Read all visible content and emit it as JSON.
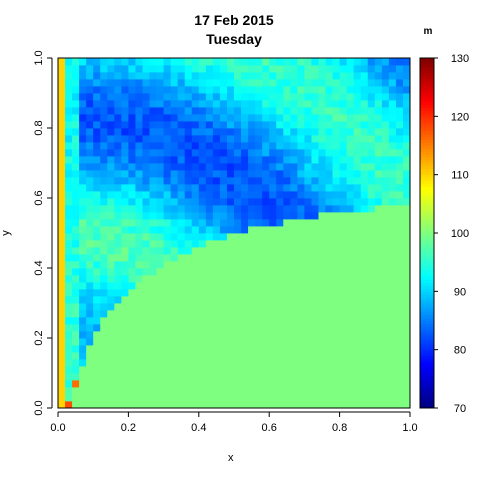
{
  "title": "17 Feb 2015",
  "subtitle": "Tuesday",
  "chart_data": {
    "type": "heatmap",
    "title": "17 Feb 2015",
    "subtitle": "Tuesday",
    "xlabel": "x",
    "ylabel": "y",
    "xlim": [
      0,
      1
    ],
    "ylim": [
      0,
      1
    ],
    "x_ticks": [
      "0.0",
      "0.2",
      "0.4",
      "0.6",
      "0.8",
      "1.0"
    ],
    "y_ticks": [
      "0.0",
      "0.2",
      "0.4",
      "0.6",
      "0.8",
      "1.0"
    ],
    "grid": {
      "nx": 50,
      "ny": 50,
      "left_column_value": 110,
      "boundary_value": 100,
      "boundary_curve_x": [
        0.03,
        0.06,
        0.1,
        0.15,
        0.2,
        0.3,
        0.4,
        0.5,
        0.6,
        0.7,
        0.8,
        0.9,
        1.0
      ],
      "boundary_curve_y": [
        0.0,
        0.1,
        0.21,
        0.28,
        0.33,
        0.41,
        0.46,
        0.5,
        0.52,
        0.54,
        0.56,
        0.57,
        0.57
      ],
      "hot_cells": [
        {
          "x": 0.02,
          "y": 0.0,
          "value": 118
        },
        {
          "x": 0.04,
          "y": 0.06,
          "value": 116
        }
      ]
    },
    "colorbar": {
      "label": "m",
      "range": [
        70,
        130
      ],
      "ticks": [
        "70",
        "80",
        "90",
        "100",
        "110",
        "120",
        "130"
      ],
      "palette": [
        "#00007F",
        "#0000FF",
        "#007FFF",
        "#00FFFF",
        "#7FFF7F",
        "#FFFF00",
        "#FF7F00",
        "#FF0000",
        "#7F0000"
      ]
    }
  }
}
